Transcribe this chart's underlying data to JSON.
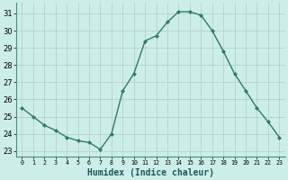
{
  "x": [
    0,
    1,
    2,
    3,
    4,
    5,
    6,
    7,
    8,
    9,
    10,
    11,
    12,
    13,
    14,
    15,
    16,
    17,
    18,
    19,
    20,
    21,
    22,
    23
  ],
  "y": [
    25.5,
    25.0,
    24.5,
    24.2,
    23.8,
    23.6,
    23.5,
    23.1,
    24.0,
    26.5,
    27.5,
    29.4,
    29.7,
    30.5,
    31.1,
    31.1,
    30.9,
    30.0,
    28.8,
    27.5,
    26.5,
    25.5,
    24.7,
    23.8
  ],
  "xlabel": "Humidex (Indice chaleur)",
  "yticks": [
    23,
    24,
    25,
    26,
    27,
    28,
    29,
    30,
    31
  ],
  "xticks": [
    0,
    1,
    2,
    3,
    4,
    5,
    6,
    7,
    8,
    9,
    10,
    11,
    12,
    13,
    14,
    15,
    16,
    17,
    18,
    19,
    20,
    21,
    22,
    23
  ],
  "ylim": [
    22.7,
    31.6
  ],
  "xlim": [
    -0.5,
    23.5
  ],
  "line_color": "#2d7a6e",
  "marker": "D",
  "marker_size": 2.0,
  "bg_color": "#cceee8",
  "grid_color": "#b0ccc8",
  "xlabel_fontsize": 7,
  "tick_fontsize": 6,
  "xlabel_fontweight": "bold",
  "linewidth": 1.0
}
